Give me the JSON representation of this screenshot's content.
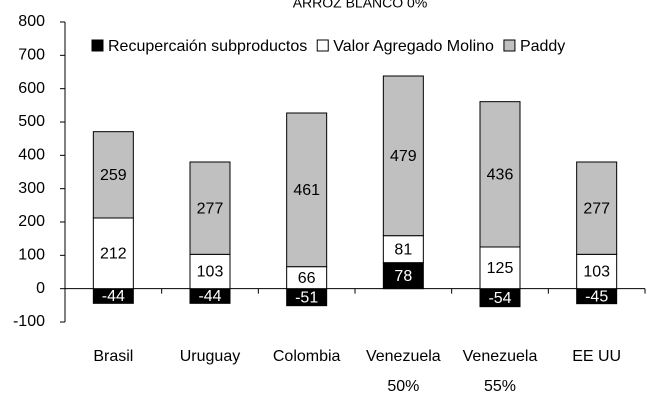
{
  "chart_data": {
    "type": "stacked_bar",
    "title": "ARROZ BLANCO 0%",
    "categories": [
      "Brasil",
      "Uruguay",
      "Colombia",
      "Venezuela 50%",
      "Venezuela 55%",
      "EE UU"
    ],
    "series": [
      {
        "name": "Recupercaión subproductos",
        "color": "#000000",
        "values": [
          -44,
          -44,
          -51,
          78,
          -54,
          -45
        ]
      },
      {
        "name": "Valor Agregado Molino",
        "color": "#ffffff",
        "values": [
          212,
          103,
          66,
          81,
          125,
          103
        ]
      },
      {
        "name": "Paddy",
        "color": "#c0c0c0",
        "values": [
          259,
          277,
          461,
          479,
          436,
          277
        ]
      }
    ],
    "ylim": [
      -100,
      800
    ],
    "yticks": [
      -100,
      0,
      100,
      200,
      300,
      400,
      500,
      600,
      700,
      800
    ],
    "legend": "top",
    "grid": false
  }
}
